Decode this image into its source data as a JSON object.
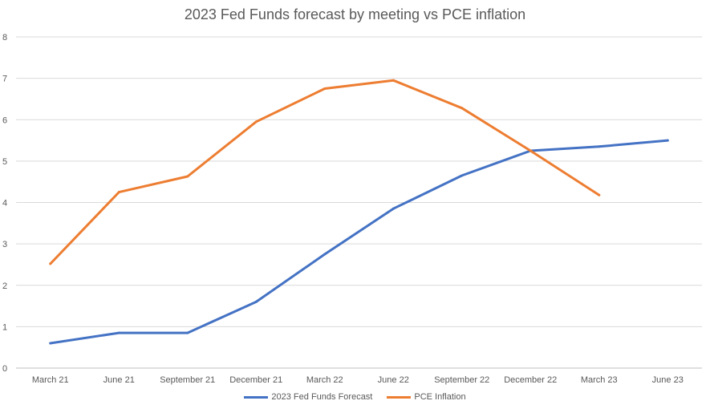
{
  "chart_data": {
    "type": "line",
    "title": "2023 Fed Funds forecast by meeting vs PCE inflation",
    "xlabel": "",
    "ylabel": "",
    "categories": [
      "March 21",
      "June 21",
      "September 21",
      "December 21",
      "March 22",
      "June 22",
      "September 22",
      "December 22",
      "March 23",
      "June 23"
    ],
    "ylim": [
      0,
      8
    ],
    "yticks": [
      0,
      1,
      2,
      3,
      4,
      5,
      6,
      7,
      8
    ],
    "grid": true,
    "legend_position": "bottom",
    "series": [
      {
        "name": "2023 Fed Funds Forecast",
        "color": "#4472C4",
        "values": [
          0.6,
          0.85,
          0.85,
          1.6,
          2.75,
          3.85,
          4.65,
          5.25,
          5.35,
          5.5
        ]
      },
      {
        "name": "PCE Inflation",
        "color": "#ED7D31",
        "values": [
          2.52,
          4.25,
          4.63,
          5.95,
          6.75,
          6.95,
          6.28,
          5.25,
          4.18,
          null
        ]
      }
    ]
  }
}
